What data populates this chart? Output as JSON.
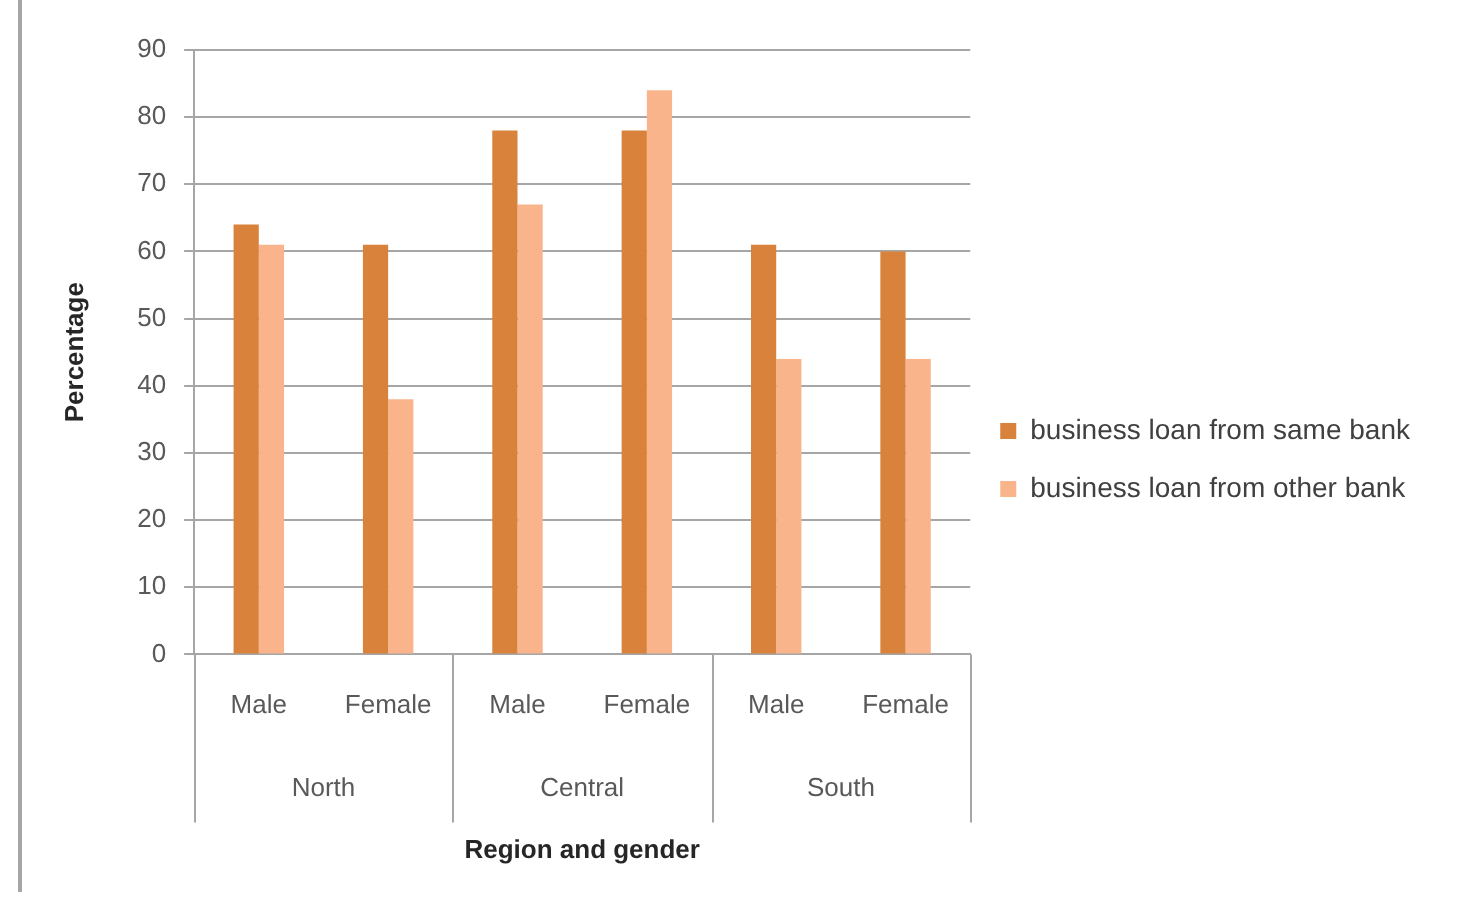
{
  "chart_data": {
    "type": "bar",
    "xlabel": "Region and gender",
    "ylabel": "Percentage",
    "categories": [
      "Male",
      "Female",
      "Male",
      "Female",
      "Male",
      "Female"
    ],
    "annotations": [
      "North",
      "Central",
      "South"
    ],
    "series": [
      {
        "name": "business loan from same bank",
        "color": "#d9823b",
        "values": [
          64,
          61,
          78,
          78,
          61,
          60
        ]
      },
      {
        "name": "business loan from other bank",
        "color": "#f9b48c",
        "values": [
          61,
          38,
          67,
          84,
          44,
          44
        ]
      }
    ],
    "ylim": [
      0,
      90
    ],
    "yticks": [
      0,
      10,
      20,
      30,
      40,
      50,
      60,
      70,
      80,
      90
    ],
    "grid": "y",
    "legend": "right"
  }
}
